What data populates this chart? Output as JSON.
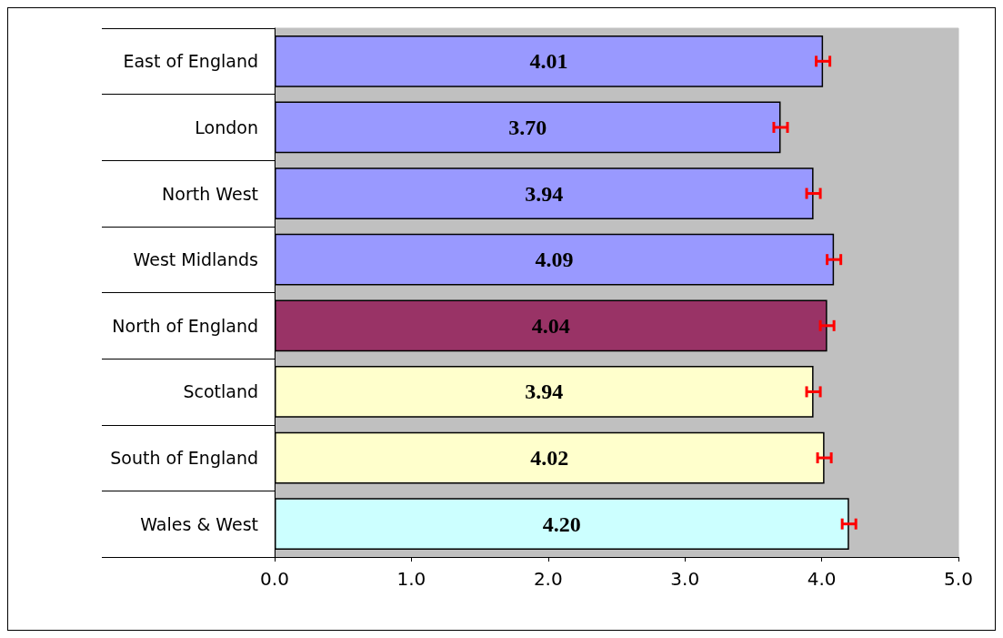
{
  "chart_data": {
    "type": "bar",
    "orientation": "horizontal",
    "categories": [
      "East of England",
      "London",
      "North West",
      "West Midlands",
      "North of England",
      "Scotland",
      "South of England",
      "Wales & West"
    ],
    "values": [
      4.01,
      3.7,
      3.94,
      4.09,
      4.04,
      3.94,
      4.02,
      4.2
    ],
    "colors": [
      "#9999ff",
      "#9999ff",
      "#9999ff",
      "#9999ff",
      "#993366",
      "#ffffcc",
      "#ffffcc",
      "#ccffff"
    ],
    "errors": [
      0.05,
      0.05,
      0.05,
      0.05,
      0.05,
      0.05,
      0.05,
      0.05
    ],
    "value_labels": [
      "4.01",
      "3.70",
      "3.94",
      "4.09",
      "4.04",
      "3.94",
      "4.02",
      "4.20"
    ],
    "xlim": [
      0,
      5
    ],
    "xticks": [
      {
        "value": 0,
        "label": "0.0"
      },
      {
        "value": 1,
        "label": "1.0"
      },
      {
        "value": 2,
        "label": "2.0"
      },
      {
        "value": 3,
        "label": "3.0"
      },
      {
        "value": 4,
        "label": "4.0"
      },
      {
        "value": 5,
        "label": "5.0"
      }
    ],
    "grid": false
  }
}
